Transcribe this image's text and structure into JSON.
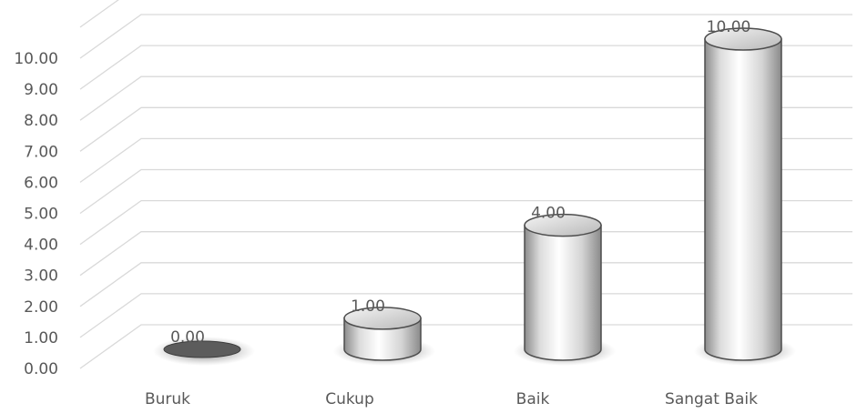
{
  "chart_data": {
    "type": "bar",
    "style": "3d-cylinder",
    "categories": [
      "Buruk",
      "Cukup",
      "Baik",
      "Sangat Baik"
    ],
    "values": [
      0.0,
      1.0,
      4.0,
      10.0
    ],
    "data_labels": [
      "0.00",
      "1.00",
      "4.00",
      "10.00"
    ],
    "y_ticks": [
      "0.00",
      "1.00",
      "2.00",
      "3.00",
      "4.00",
      "5.00",
      "6.00",
      "7.00",
      "8.00",
      "9.00",
      "10.00"
    ],
    "ylim": [
      0,
      10
    ],
    "grid": true,
    "legend": false,
    "colors": {
      "bar": "#e8e8e8",
      "bar_edge": "#4d4d4d",
      "grid": "#d9d9d9",
      "text": "#595959"
    }
  }
}
